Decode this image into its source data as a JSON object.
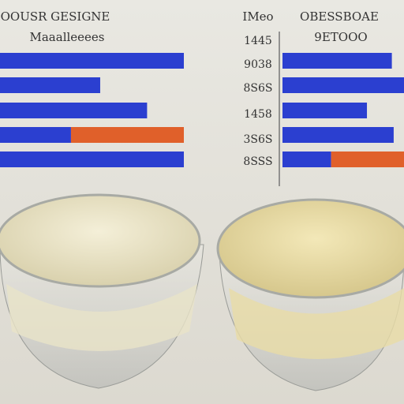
{
  "chart_data": [
    {
      "type": "bar",
      "orientation": "horizontal",
      "title": "OOUSR GESIGNE",
      "subtitle": "Maaalleeees",
      "categories": [
        null,
        null,
        null,
        null,
        null
      ],
      "series": [
        {
          "name": null,
          "color": "#2b3fd0",
          "values": [
            100,
            54.5,
            80,
            38.6,
            100
          ]
        },
        {
          "name": null,
          "color": "#e0602a",
          "values": [
            null,
            null,
            null,
            61.4,
            null
          ]
        }
      ],
      "xlim": [
        0,
        100
      ]
    },
    {
      "type": "bar",
      "orientation": "horizontal",
      "title": "OBESSBOAE",
      "subtitle": "9ETOOO",
      "categories": [
        null,
        null,
        null,
        null,
        null
      ],
      "series": [
        {
          "name": null,
          "color": "#2b3fd0",
          "values": [
            90,
            100,
            69.5,
            91.5,
            40
          ]
        },
        {
          "name": null,
          "color": "#e0602a",
          "values": [
            null,
            null,
            null,
            null,
            60
          ]
        }
      ],
      "xlim": [
        0,
        100
      ]
    }
  ],
  "middle": {
    "header": "IMeo",
    "labels": [
      "1445",
      "9038",
      "8S6S",
      "1458",
      "3S6S",
      "8SSS"
    ]
  }
}
